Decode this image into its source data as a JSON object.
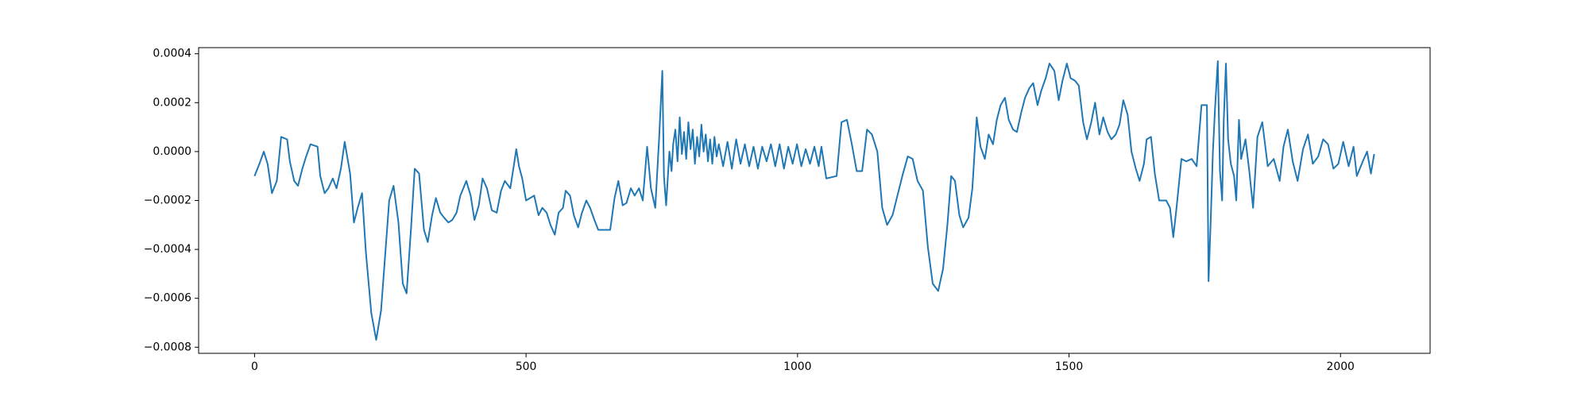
{
  "chart_data": {
    "type": "line",
    "color": "#1f77b4",
    "x": [
      0,
      9,
      17,
      24,
      32,
      41,
      49,
      60,
      65,
      73,
      80,
      88,
      95,
      103,
      116,
      121,
      129,
      136,
      144,
      151,
      159,
      166,
      176,
      183,
      190,
      198,
      205,
      215,
      224,
      233,
      241,
      248,
      256,
      265,
      273,
      280,
      288,
      295,
      303,
      312,
      319,
      327,
      334,
      342,
      349,
      357,
      364,
      372,
      379,
      390,
      398,
      405,
      413,
      420,
      428,
      437,
      446,
      454,
      461,
      471,
      478,
      482,
      487,
      493,
      500,
      515,
      523,
      530,
      538,
      545,
      553,
      560,
      568,
      573,
      581,
      588,
      596,
      603,
      611,
      618,
      626,
      633,
      641,
      655,
      663,
      670,
      678,
      685,
      693,
      700,
      708,
      715,
      723,
      730,
      738,
      745,
      751,
      754,
      758,
      764,
      768,
      771,
      775,
      779,
      783,
      787,
      791,
      795,
      799,
      803,
      807,
      811,
      815,
      819,
      823,
      827,
      831,
      835,
      839,
      843,
      847,
      851,
      855,
      863,
      871,
      879,
      887,
      895,
      903,
      911,
      919,
      927,
      935,
      943,
      951,
      959,
      967,
      975,
      983,
      991,
      999,
      1007,
      1015,
      1023,
      1031,
      1039,
      1044,
      1053,
      1072,
      1081,
      1091,
      1100,
      1109,
      1119,
      1128,
      1137,
      1147,
      1156,
      1165,
      1175,
      1184,
      1193,
      1203,
      1212,
      1221,
      1231,
      1240,
      1249,
      1259,
      1268,
      1276,
      1283,
      1290,
      1298,
      1305,
      1315,
      1322,
      1330,
      1337,
      1345,
      1352,
      1360,
      1367,
      1374,
      1382,
      1389,
      1397,
      1404,
      1412,
      1419,
      1427,
      1434,
      1442,
      1449,
      1457,
      1464,
      1473,
      1481,
      1488,
      1496,
      1503,
      1511,
      1518,
      1526,
      1533,
      1541,
      1548,
      1556,
      1563,
      1571,
      1578,
      1586,
      1593,
      1600,
      1608,
      1615,
      1623,
      1630,
      1638,
      1643,
      1651,
      1658,
      1666,
      1679,
      1686,
      1692,
      1698,
      1703,
      1707,
      1716,
      1726,
      1735,
      1744,
      1754,
      1757,
      1761,
      1765,
      1769,
      1774,
      1778,
      1782,
      1785,
      1789,
      1793,
      1798,
      1804,
      1808,
      1813,
      1817,
      1825,
      1832,
      1839,
      1847,
      1856,
      1866,
      1877,
      1888,
      1895,
      1903,
      1912,
      1921,
      1931,
      1940,
      1949,
      1959,
      1968,
      1977,
      1987,
      1996,
      2005,
      2015,
      2024,
      2030,
      2041,
      2049,
      2056,
      2062
    ],
    "values": [
      -0.0001,
      -5e-05,
      0,
      -5e-05,
      -0.00017,
      -0.00012,
      6e-05,
      5e-05,
      -4e-05,
      -0.00012,
      -0.00014,
      -7e-05,
      -2e-05,
      3e-05,
      2e-05,
      -0.0001,
      -0.00017,
      -0.00015,
      -0.00011,
      -0.00015,
      -7e-05,
      4e-05,
      -9e-05,
      -0.00029,
      -0.00023,
      -0.00017,
      -0.00041,
      -0.00066,
      -0.00077,
      -0.00065,
      -0.00041,
      -0.0002,
      -0.00014,
      -0.00029,
      -0.00054,
      -0.00058,
      -0.00032,
      -7e-05,
      -9e-05,
      -0.00032,
      -0.00037,
      -0.00026,
      -0.00019,
      -0.00025,
      -0.00027,
      -0.00029,
      -0.00028,
      -0.00025,
      -0.00018,
      -0.00012,
      -0.00018,
      -0.00028,
      -0.00022,
      -0.00011,
      -0.00015,
      -0.00024,
      -0.00025,
      -0.00016,
      -0.00012,
      -0.00015,
      -5e-05,
      1e-05,
      -6e-05,
      -0.00011,
      -0.0002,
      -0.00018,
      -0.00026,
      -0.00023,
      -0.00025,
      -0.0003,
      -0.00034,
      -0.00025,
      -0.00023,
      -0.00016,
      -0.00018,
      -0.00026,
      -0.00031,
      -0.00025,
      -0.0002,
      -0.00023,
      -0.00028,
      -0.00032,
      -0.00032,
      -0.00032,
      -0.00019,
      -0.00012,
      -0.00022,
      -0.00021,
      -0.00015,
      -0.00018,
      -0.00015,
      -0.0002,
      2e-05,
      -0.00015,
      -0.00023,
      5e-05,
      0.00033,
      -0.0001,
      -0.00022,
      0,
      -8e-05,
      3e-05,
      9e-05,
      -4e-05,
      0.00014,
      -1e-05,
      8e-05,
      -3e-05,
      0.00012,
      1e-05,
      9e-05,
      -5e-05,
      6e-05,
      -2e-05,
      0.00011,
      0,
      7e-05,
      -4e-05,
      5e-05,
      -5e-05,
      6e-05,
      -2e-05,
      3e-05,
      -6e-05,
      4e-05,
      -7e-05,
      5e-05,
      -5e-05,
      3e-05,
      -6e-05,
      2e-05,
      -7e-05,
      2e-05,
      -4e-05,
      3e-05,
      -6e-05,
      3e-05,
      -7e-05,
      2e-05,
      -5e-05,
      3e-05,
      -6e-05,
      1e-05,
      -5e-05,
      2e-05,
      -6e-05,
      2e-05,
      -0.00011,
      -0.0001,
      0.00012,
      0.00013,
      3e-05,
      -8e-05,
      -8e-05,
      9e-05,
      7e-05,
      0,
      -0.00023,
      -0.0003,
      -0.00026,
      -0.00018,
      -0.0001,
      -2e-05,
      -3e-05,
      -0.00012,
      -0.00016,
      -0.00039,
      -0.00054,
      -0.00057,
      -0.00048,
      -0.0003,
      -0.0001,
      -0.00012,
      -0.00026,
      -0.00031,
      -0.00027,
      -0.00015,
      0.00014,
      2e-05,
      -3e-05,
      7e-05,
      3e-05,
      0.00013,
      0.00019,
      0.00022,
      0.00013,
      9e-05,
      8e-05,
      0.00016,
      0.00022,
      0.00026,
      0.00028,
      0.00019,
      0.00025,
      0.0003,
      0.00036,
      0.00033,
      0.00021,
      0.00029,
      0.00036,
      0.0003,
      0.00029,
      0.00027,
      0.00012,
      5e-05,
      0.00012,
      0.0002,
      7e-05,
      0.00014,
      8e-05,
      5e-05,
      7e-05,
      0.00011,
      0.00021,
      0.00015,
      0,
      -7e-05,
      -0.00012,
      -5e-05,
      5e-05,
      6e-05,
      -9e-05,
      -0.0002,
      -0.0002,
      -0.00023,
      -0.00035,
      -0.00023,
      -0.00012,
      -3e-05,
      -4e-05,
      -3e-05,
      -6e-05,
      0.00019,
      0.00019,
      -0.00053,
      -0.00028,
      0,
      0.00018,
      0.00037,
      -8e-05,
      -0.0002,
      0.00013,
      0.00036,
      5e-05,
      -5e-05,
      -0.0001,
      -0.0002,
      0.00013,
      -3e-05,
      5e-05,
      -8e-05,
      -0.00023,
      6e-05,
      0.00012,
      -6e-05,
      -3e-05,
      -0.00012,
      2e-05,
      9e-05,
      -4e-05,
      -0.00012,
      1e-05,
      7e-05,
      -5e-05,
      -2e-05,
      5e-05,
      3e-05,
      -7e-05,
      -5e-05,
      4e-05,
      -6e-05,
      2e-05,
      -0.0001,
      -4e-05,
      0,
      -9e-05,
      -1e-05
    ],
    "xlim": [
      -103,
      2165
    ],
    "xticks": [
      0,
      500,
      1000,
      1500,
      2000
    ],
    "ylim": [
      -0.000825,
      0.000425
    ],
    "yticks": [
      {
        "value": -0.0008,
        "label": "−0.0008"
      },
      {
        "value": -0.0006,
        "label": "−0.0006"
      },
      {
        "value": -0.0004,
        "label": "−0.0004"
      },
      {
        "value": -0.0002,
        "label": "−0.0002"
      },
      {
        "value": 0,
        "label": "0.0000"
      },
      {
        "value": 0.0002,
        "label": "0.0002"
      },
      {
        "value": 0.0004,
        "label": "0.0004"
      }
    ]
  }
}
